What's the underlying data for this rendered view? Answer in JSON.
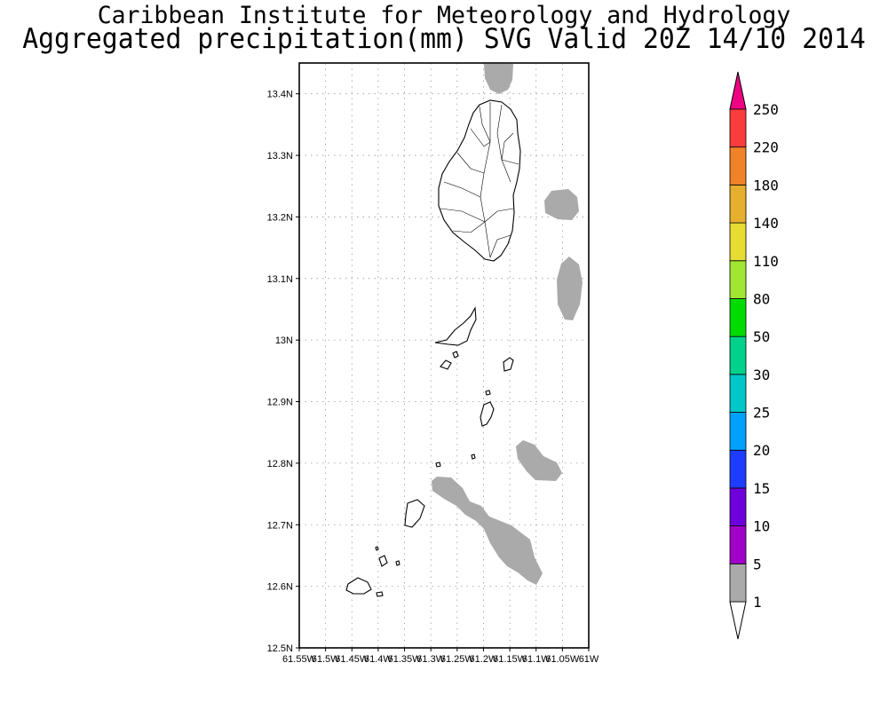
{
  "header": {
    "title_line1": "Caribbean Institute for Meteorology and Hydrology",
    "title_line2": "Aggregated precipitation(mm) SVG Valid 20Z 14/10 2014"
  },
  "map": {
    "region": "St. Vincent and the Grenadines",
    "lat_range": [
      12.5,
      13.45
    ],
    "lon_range": [
      -61.55,
      -61.0
    ],
    "lat_ticks": [
      "13.4N",
      "13.3N",
      "13.2N",
      "13.1N",
      "13N",
      "12.9N",
      "12.8N",
      "12.7N",
      "12.6N",
      "12.5N"
    ],
    "lon_ticks": [
      "61.55W",
      "61.5W",
      "61.45W",
      "61.4W",
      "61.35W",
      "61.3W",
      "61.25W",
      "61.2W",
      "61.15W",
      "61.1W",
      "61.05W",
      "61W"
    ],
    "grid": true,
    "precipitation_areas_class": "1-5 mm"
  },
  "legend": {
    "placement": "right",
    "levels": [
      {
        "label": "1",
        "color": "#aaaaaa"
      },
      {
        "label": "5",
        "color": "#a000c8"
      },
      {
        "label": "10",
        "color": "#6e00dc"
      },
      {
        "label": "15",
        "color": "#1e3cff"
      },
      {
        "label": "20",
        "color": "#00a0ff"
      },
      {
        "label": "25",
        "color": "#00c8c8"
      },
      {
        "label": "30",
        "color": "#00d28c"
      },
      {
        "label": "50",
        "color": "#00dc00"
      },
      {
        "label": "80",
        "color": "#a0e632"
      },
      {
        "label": "110",
        "color": "#e6dc32"
      },
      {
        "label": "140",
        "color": "#e6af2d"
      },
      {
        "label": "180",
        "color": "#f08228"
      },
      {
        "label": "220",
        "color": "#fa3c3c"
      },
      {
        "label": "250",
        "color": "#f00082"
      }
    ],
    "colors": {
      "above_max_arrow": "#f00082",
      "below_min_arrow": "#ffffff",
      "rain_fill": "#aaaaaa"
    }
  }
}
